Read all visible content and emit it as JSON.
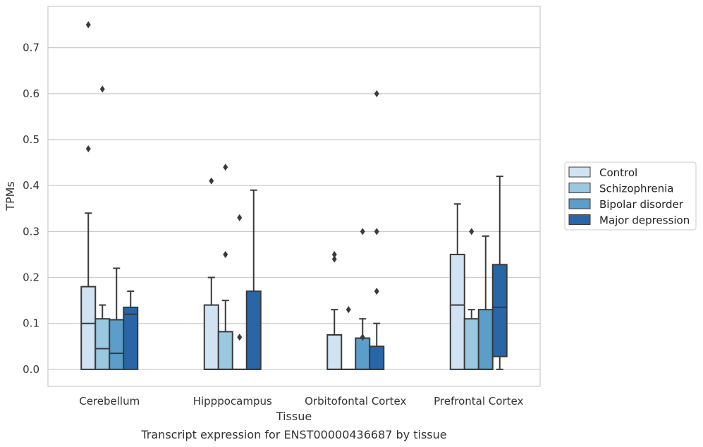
{
  "chart_data": {
    "type": "box",
    "xlabel": "Tissue",
    "ylabel": "TPMs",
    "caption": "Transcript expression for ENST00000436687 by tissue",
    "ylim": [
      -0.037,
      0.79
    ],
    "yticks": [
      "0.0",
      "0.1",
      "0.2",
      "0.3",
      "0.4",
      "0.5",
      "0.6",
      "0.7"
    ],
    "ytick_values": [
      0.0,
      0.1,
      0.2,
      0.3,
      0.4,
      0.5,
      0.6,
      0.7
    ],
    "grid": "horizontal",
    "legend_position": "right",
    "categories": [
      "Cerebellum",
      "Hipppocampus",
      "Orbitofontal Cortex",
      "Prefrontal Cortex"
    ],
    "series": [
      {
        "name": "Control",
        "color": "#d1e2f2",
        "boxes": [
          {
            "whisker_low": 0.0,
            "q1": 0.0,
            "median": 0.1,
            "q3": 0.18,
            "whisker_high": 0.34,
            "outliers": [
              0.48,
              0.75
            ]
          },
          {
            "whisker_low": 0.0,
            "q1": 0.0,
            "median": 0.0,
            "q3": 0.14,
            "whisker_high": 0.2,
            "outliers": [
              0.41
            ]
          },
          {
            "whisker_low": 0.0,
            "q1": 0.0,
            "median": 0.0,
            "q3": 0.075,
            "whisker_high": 0.13,
            "outliers": [
              0.24,
              0.25
            ]
          },
          {
            "whisker_low": 0.0,
            "q1": 0.0,
            "median": 0.14,
            "q3": 0.25,
            "whisker_high": 0.36,
            "outliers": []
          }
        ]
      },
      {
        "name": "Schizophrenia",
        "color": "#9ac8e0",
        "boxes": [
          {
            "whisker_low": 0.0,
            "q1": 0.0,
            "median": 0.045,
            "q3": 0.11,
            "whisker_high": 0.14,
            "outliers": [
              0.61
            ]
          },
          {
            "whisker_low": 0.0,
            "q1": 0.0,
            "median": 0.0,
            "q3": 0.082,
            "whisker_high": 0.15,
            "outliers": [
              0.25,
              0.44
            ]
          },
          {
            "whisker_low": 0.0,
            "q1": 0.0,
            "median": 0.0,
            "q3": 0.0,
            "whisker_high": 0.0,
            "outliers": [
              0.13
            ]
          },
          {
            "whisker_low": 0.0,
            "q1": 0.0,
            "median": 0.0,
            "q3": 0.11,
            "whisker_high": 0.13,
            "outliers": [
              0.3
            ]
          }
        ]
      },
      {
        "name": "Bipolar disorder",
        "color": "#5a9ec9",
        "boxes": [
          {
            "whisker_low": 0.0,
            "q1": 0.0,
            "median": 0.035,
            "q3": 0.108,
            "whisker_high": 0.22,
            "outliers": []
          },
          {
            "whisker_low": 0.0,
            "q1": 0.0,
            "median": 0.0,
            "q3": 0.0,
            "whisker_high": 0.0,
            "outliers": [
              0.07,
              0.33
            ]
          },
          {
            "whisker_low": 0.0,
            "q1": 0.0,
            "median": 0.0,
            "q3": 0.068,
            "whisker_high": 0.11,
            "outliers": [
              0.07,
              0.3
            ]
          },
          {
            "whisker_low": 0.0,
            "q1": 0.0,
            "median": 0.0,
            "q3": 0.13,
            "whisker_high": 0.29,
            "outliers": []
          }
        ]
      },
      {
        "name": "Major depression",
        "color": "#2866a8",
        "boxes": [
          {
            "whisker_low": 0.0,
            "q1": 0.0,
            "median": 0.12,
            "q3": 0.135,
            "whisker_high": 0.17,
            "outliers": []
          },
          {
            "whisker_low": 0.0,
            "q1": 0.0,
            "median": 0.0,
            "q3": 0.17,
            "whisker_high": 0.39,
            "outliers": []
          },
          {
            "whisker_low": 0.0,
            "q1": 0.0,
            "median": 0.0,
            "q3": 0.05,
            "whisker_high": 0.1,
            "outliers": [
              0.17,
              0.3,
              0.6
            ]
          },
          {
            "whisker_low": 0.0,
            "q1": 0.028,
            "median": 0.135,
            "q3": 0.228,
            "whisker_high": 0.42,
            "outliers": []
          }
        ]
      }
    ]
  }
}
